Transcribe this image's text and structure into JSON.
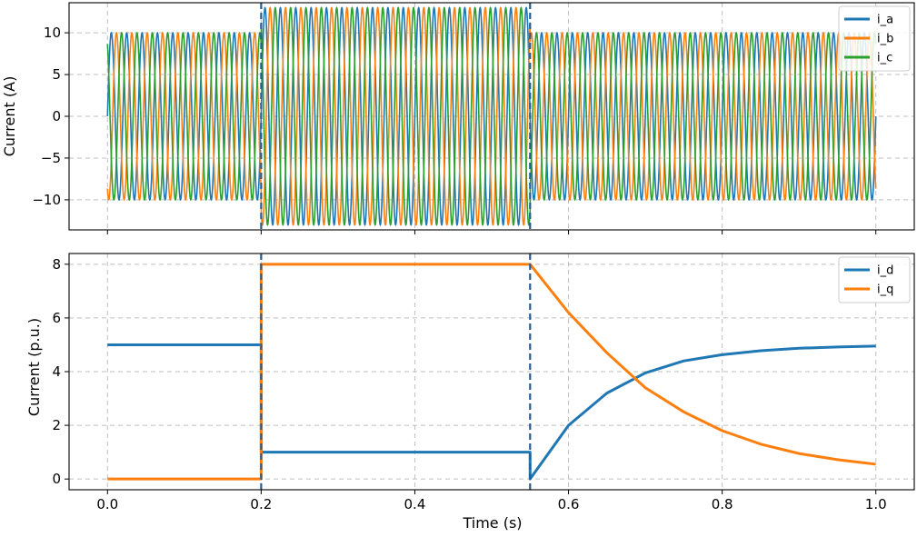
{
  "chart_data": [
    {
      "type": "line",
      "ylabel": "Current (A)",
      "xlim": [
        -0.05,
        1.05
      ],
      "ylim": [
        -13.6,
        13.6
      ],
      "yticks": [
        10,
        5,
        0,
        -5,
        -10
      ],
      "ytick_labels": [
        "10",
        "5",
        "0",
        "−5",
        "−10"
      ],
      "xticks": [
        0.0,
        0.2,
        0.4,
        0.6,
        0.8,
        1.0
      ],
      "grid": true,
      "legend_position": "top-right",
      "vlines": [
        0.2,
        0.55
      ],
      "waveform": {
        "frequency_hz": 50,
        "segments": [
          {
            "start": 0.0,
            "end": 0.2,
            "amplitude": 10
          },
          {
            "start": 0.2,
            "end": 0.55,
            "amplitude": 13
          },
          {
            "start": 0.55,
            "end": 1.0,
            "amplitude": 10
          }
        ]
      },
      "series": [
        {
          "name": "i_a",
          "phase_deg": 0,
          "color": "#1f77b4"
        },
        {
          "name": "i_b",
          "phase_deg": -120,
          "color": "#ff7f0e"
        },
        {
          "name": "i_c",
          "phase_deg": 120,
          "color": "#2ca02c"
        }
      ]
    },
    {
      "type": "line",
      "xlabel": "Time (s)",
      "ylabel": "Current (p.u.)",
      "xlim": [
        -0.05,
        1.05
      ],
      "ylim": [
        -0.4,
        8.4
      ],
      "yticks": [
        0,
        2,
        4,
        6,
        8
      ],
      "ytick_labels": [
        "0",
        "2",
        "4",
        "6",
        "8"
      ],
      "xticks": [
        0.0,
        0.2,
        0.4,
        0.6,
        0.8,
        1.0
      ],
      "xtick_labels": [
        "0.0",
        "0.2",
        "0.4",
        "0.6",
        "0.8",
        "1.0"
      ],
      "grid": true,
      "legend_position": "top-right",
      "vlines": [
        0.2,
        0.55
      ],
      "series": [
        {
          "name": "i_d",
          "color": "#1f77b4",
          "x": [
            0.0,
            0.2,
            0.2,
            0.55,
            0.55,
            0.6,
            0.65,
            0.7,
            0.75,
            0.8,
            0.85,
            0.9,
            0.95,
            1.0
          ],
          "y": [
            5.0,
            5.0,
            1.0,
            1.0,
            0.0,
            2.0,
            3.2,
            3.95,
            4.4,
            4.63,
            4.78,
            4.87,
            4.92,
            4.95
          ]
        },
        {
          "name": "i_q",
          "color": "#ff7f0e",
          "x": [
            0.0,
            0.2,
            0.2,
            0.55,
            0.6,
            0.65,
            0.7,
            0.75,
            0.8,
            0.85,
            0.9,
            0.95,
            1.0
          ],
          "y": [
            0.0,
            0.0,
            8.0,
            8.0,
            6.2,
            4.7,
            3.4,
            2.5,
            1.8,
            1.3,
            0.95,
            0.72,
            0.55
          ]
        }
      ]
    }
  ]
}
